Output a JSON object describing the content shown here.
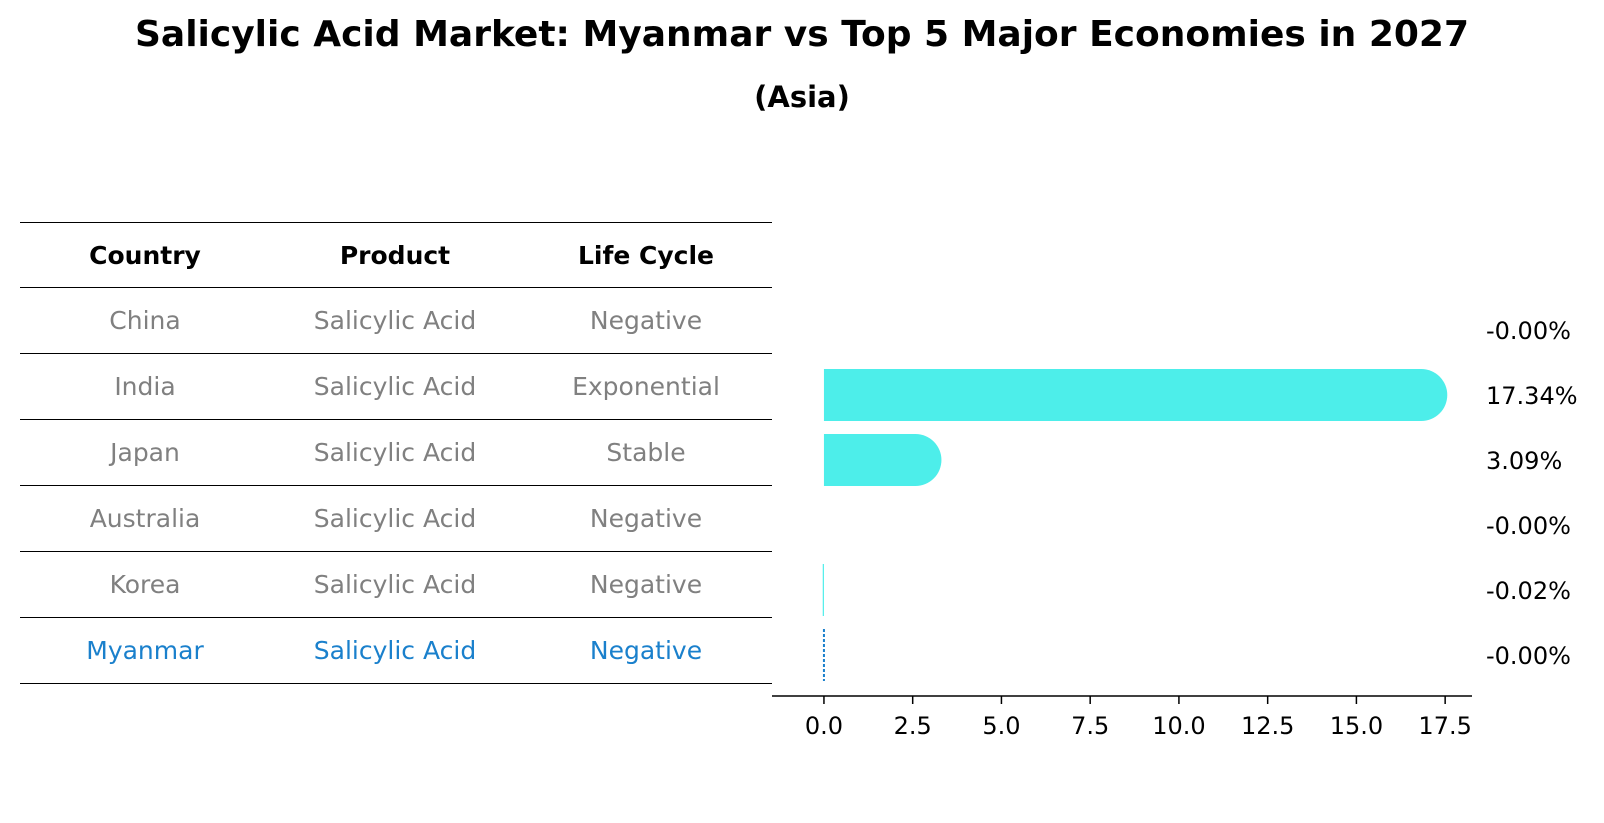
{
  "title": "Salicylic Acid Market: Myanmar vs Top 5 Major Economies in 2027",
  "subtitle": "(Asia)",
  "table": {
    "headers": [
      "Country",
      "Product",
      "Life Cycle"
    ],
    "rows": [
      {
        "country": "China",
        "product": "Salicylic Acid",
        "life_cycle": "Negative"
      },
      {
        "country": "India",
        "product": "Salicylic Acid",
        "life_cycle": "Exponential"
      },
      {
        "country": "Japan",
        "product": "Salicylic Acid",
        "life_cycle": "Stable"
      },
      {
        "country": "Australia",
        "product": "Salicylic Acid",
        "life_cycle": "Negative"
      },
      {
        "country": "Korea",
        "product": "Salicylic Acid",
        "life_cycle": "Negative"
      },
      {
        "country": "Myanmar",
        "product": "Salicylic Acid",
        "life_cycle": "Negative"
      }
    ]
  },
  "chart_data": {
    "type": "bar",
    "orientation": "horizontal",
    "categories": [
      "China",
      "India",
      "Japan",
      "Australia",
      "Korea",
      "Myanmar"
    ],
    "values": [
      -0.0,
      17.34,
      3.09,
      -0.0,
      -0.02,
      -0.0
    ],
    "value_labels": [
      "-0.00%",
      "17.34%",
      "3.09%",
      "-0.00%",
      "-0.02%",
      "-0.00%"
    ],
    "highlight": "Myanmar",
    "xlim": [
      -0.9,
      18.2
    ],
    "xticks": [
      0.0,
      2.5,
      5.0,
      7.5,
      10.0,
      12.5,
      15.0,
      17.5
    ],
    "xtick_labels": [
      "0.0",
      "2.5",
      "5.0",
      "7.5",
      "10.0",
      "12.5",
      "15.0",
      "17.5"
    ],
    "xlabel": "",
    "ylabel": "",
    "grid": false,
    "bar_color": "#4deeea",
    "highlight_color": "#1a80cc"
  }
}
